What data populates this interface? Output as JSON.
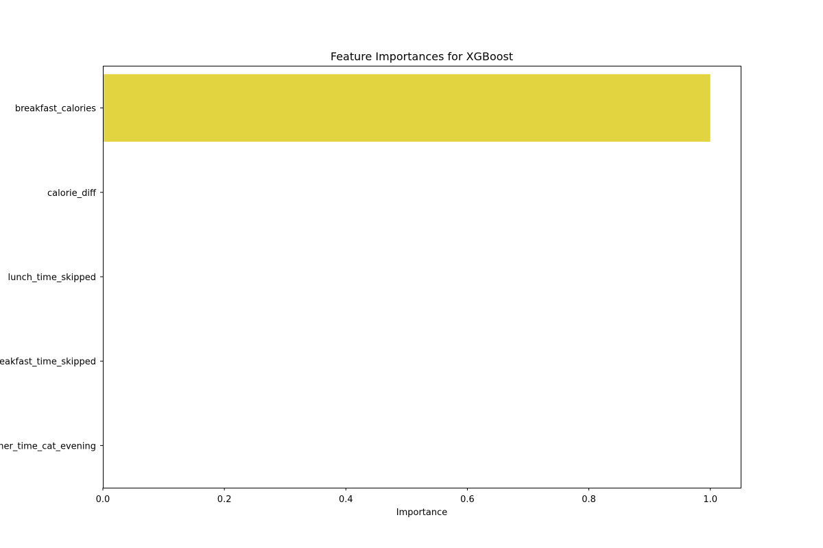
{
  "chart_data": {
    "type": "bar",
    "orientation": "horizontal",
    "title": "Feature Importances for XGBoost",
    "xlabel": "Importance",
    "ylabel": "",
    "categories": [
      "breakfast_calories",
      "calorie_diff",
      "lunch_time_skipped",
      "breakfast_time_skipped",
      "dinner_time_cat_evening"
    ],
    "values": [
      1.0,
      0.0,
      0.0,
      0.0,
      0.0
    ],
    "xlim": [
      0.0,
      1.05
    ],
    "xticks": [
      0.0,
      0.2,
      0.4,
      0.6,
      0.8,
      1.0
    ],
    "xtick_labels": [
      "0.0",
      "0.2",
      "0.4",
      "0.6",
      "0.8",
      "1.0"
    ],
    "grid": false,
    "legend": "none",
    "bar_colors": [
      "#e2d340",
      "#e2d340",
      "#e2d340",
      "#e2d340",
      "#e2d340"
    ]
  }
}
